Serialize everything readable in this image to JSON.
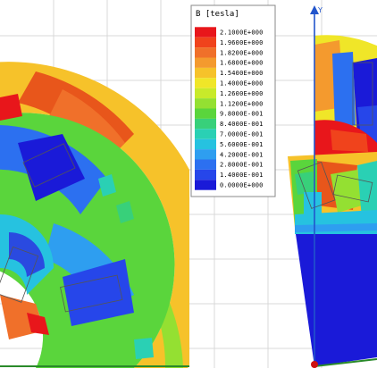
{
  "legend": {
    "title": "B [tesla]",
    "entries": [
      {
        "label": "2.1000E+000",
        "color": "#e8161b"
      },
      {
        "label": "1.9600E+000",
        "color": "#f0431c"
      },
      {
        "label": "1.8200E+000",
        "color": "#f0702a"
      },
      {
        "label": "1.6800E+000",
        "color": "#f49a2e"
      },
      {
        "label": "1.5400E+000",
        "color": "#f6c22a"
      },
      {
        "label": "1.4000E+000",
        "color": "#f0e628"
      },
      {
        "label": "1.2600E+000",
        "color": "#c8ea2a"
      },
      {
        "label": "1.1200E+000",
        "color": "#94e032"
      },
      {
        "label": "9.8000E-001",
        "color": "#5ad53c"
      },
      {
        "label": "8.4000E-001",
        "color": "#38d07a"
      },
      {
        "label": "7.0000E-001",
        "color": "#2ad0b4"
      },
      {
        "label": "5.6000E-001",
        "color": "#26c2e0"
      },
      {
        "label": "4.2000E-001",
        "color": "#2e9ef0"
      },
      {
        "label": "2.8000E-001",
        "color": "#2c70f0"
      },
      {
        "label": "1.4000E-001",
        "color": "#2646ea"
      },
      {
        "label": "0.0000E+000",
        "color": "#1a1ad8"
      }
    ]
  },
  "axis": {
    "y_label": "Y"
  },
  "colors": {
    "grid": "#d8d8d8",
    "axis": "#2255cc",
    "boundary": "#2a8a2a",
    "origin": "#cc1111"
  }
}
